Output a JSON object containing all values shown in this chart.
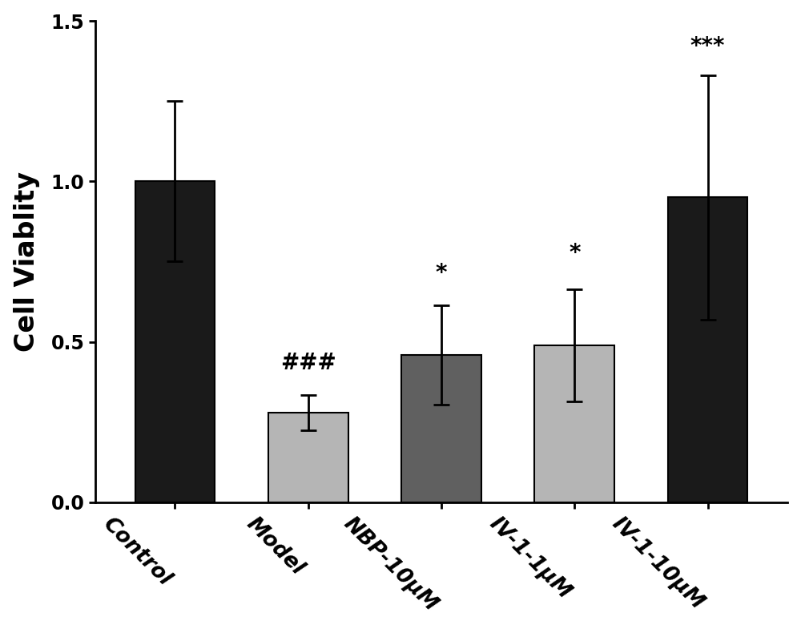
{
  "categories": [
    "Control",
    "Model",
    "NBP-10μM",
    "IV-1-1μM",
    "IV-1-10μM"
  ],
  "values": [
    1.0,
    0.28,
    0.46,
    0.49,
    0.95
  ],
  "errors": [
    0.25,
    0.055,
    0.155,
    0.175,
    0.38
  ],
  "bar_colors": [
    "#1a1a1a",
    "#b5b5b5",
    "#606060",
    "#b5b5b5",
    "#1a1a1a"
  ],
  "bar_edgecolors": [
    "#000000",
    "#000000",
    "#000000",
    "#000000",
    "#000000"
  ],
  "annotations": [
    "",
    "###",
    "*",
    "*",
    "***"
  ],
  "annotation_offsets": [
    0.0,
    0.065,
    0.065,
    0.075,
    0.055
  ],
  "ylabel": "Cell Viablity",
  "ylim": [
    0.0,
    1.5
  ],
  "yticks": [
    0.0,
    0.5,
    1.0,
    1.5
  ],
  "ytick_labels": [
    "0.0",
    "0.5",
    "1.0",
    "1.5"
  ],
  "background_color": "#ffffff",
  "bar_width": 0.6,
  "figsize": [
    10.0,
    7.85
  ],
  "dpi": 100,
  "annotation_fontsize": 20,
  "ylabel_fontsize": 24,
  "tick_label_fontsize": 17,
  "xtick_fontsize": 19,
  "xlabel_rotation": -45,
  "error_capsize": 7,
  "error_linewidth": 2.0,
  "spine_linewidth": 2.0
}
